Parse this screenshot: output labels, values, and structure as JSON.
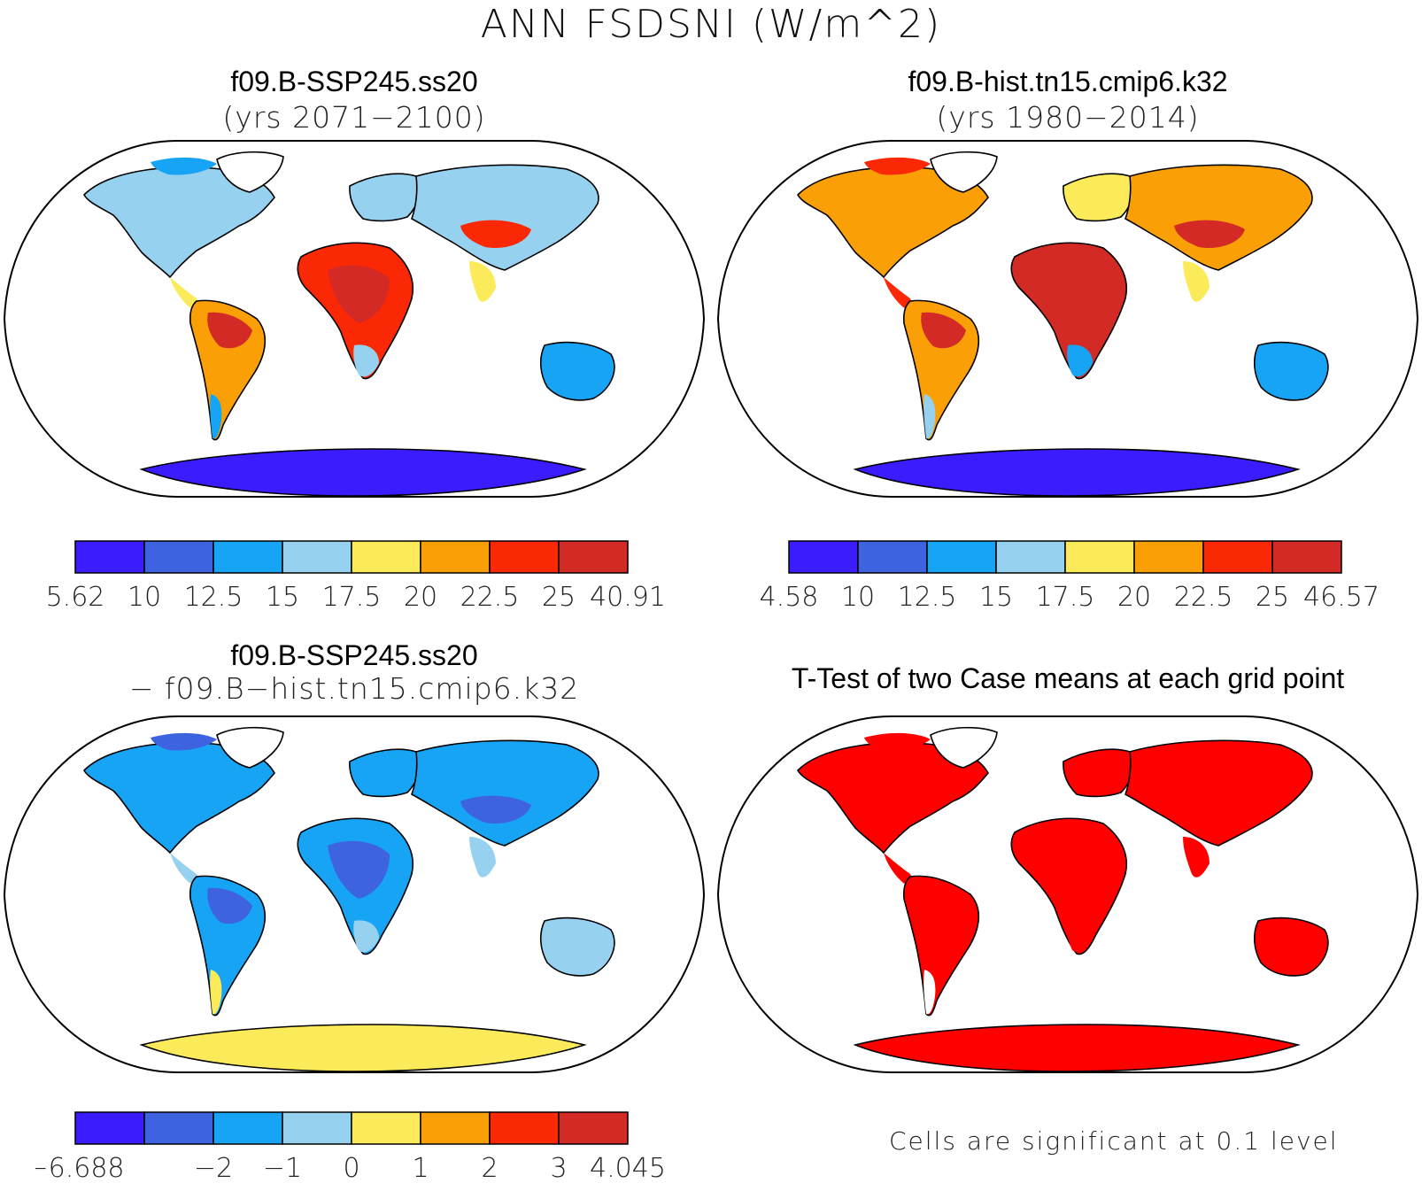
{
  "figure": {
    "title": "ANN FSDSNI (W/m^2)",
    "note": "Cells are significant at 0.1 level"
  },
  "panels": [
    {
      "id": "case1",
      "title": "f09.B-SSP245.ss20",
      "subtitle": "(yrs 2071−2100)",
      "colorbar": {
        "colors": [
          "#3a1cff",
          "#3e63e0",
          "#18a4f4",
          "#96d2f0",
          "#fbeb5a",
          "#fb9f07",
          "#fb2806",
          "#d32a26"
        ],
        "labels": [
          "5.62",
          "10",
          "12.5",
          "15",
          "17.5",
          "20",
          "22.5",
          "25",
          "40.91"
        ]
      }
    },
    {
      "id": "case2",
      "title": "f09.B-hist.tn15.cmip6.k32",
      "subtitle": "(yrs 1980−2014)",
      "colorbar": {
        "colors": [
          "#3a1cff",
          "#3e63e0",
          "#18a4f4",
          "#96d2f0",
          "#fbeb5a",
          "#fb9f07",
          "#fb2806",
          "#d32a26"
        ],
        "labels": [
          "4.58",
          "10",
          "12.5",
          "15",
          "17.5",
          "20",
          "22.5",
          "25",
          "46.57"
        ]
      }
    },
    {
      "id": "diff",
      "title": "f09.B-SSP245.ss20",
      "subtitle": "− f09.B−hist.tn15.cmip6.k32",
      "colorbar": {
        "colors": [
          "#3a1cff",
          "#3e63e0",
          "#18a4f4",
          "#96d2f0",
          "#fbeb5a",
          "#fb9f07",
          "#fb2806",
          "#d32a26"
        ],
        "labels": [
          "−6.688",
          "",
          "−2",
          "−1",
          "0",
          "1",
          "2",
          "3",
          "4.045"
        ]
      }
    },
    {
      "id": "ttest",
      "title": "T-Test of two Case means at each grid point",
      "subtitle": ""
    }
  ],
  "palettes": {
    "case1": {
      "ocean": "#ffffff",
      "northam": "#96d2f0",
      "greenland": "#ffffff",
      "arctic": "#18a4f4",
      "southam": "#fb9f07",
      "southam_core": "#d32a26",
      "southam_tip": "#18a4f4",
      "africa": "#fb2806",
      "africa_core": "#d32a26",
      "africa_south": "#96d2f0",
      "europe": "#96d2f0",
      "asia": "#96d2f0",
      "asia_south": "#fbeb5a",
      "asia_core": "#fb2806",
      "australia": "#18a4f4",
      "antarctica": "#3a1cff",
      "centralam": "#fbeb5a"
    },
    "case2": {
      "ocean": "#ffffff",
      "northam": "#fb9f07",
      "greenland": "#ffffff",
      "arctic": "#fb2806",
      "southam": "#fb9f07",
      "southam_core": "#d32a26",
      "southam_tip": "#96d2f0",
      "africa": "#d32a26",
      "africa_core": "#d32a26",
      "africa_south": "#18a4f4",
      "europe": "#fbeb5a",
      "asia": "#fb9f07",
      "asia_south": "#fbeb5a",
      "asia_core": "#d32a26",
      "australia": "#18a4f4",
      "antarctica": "#3a1cff",
      "centralam": "#fb2806"
    },
    "diff": {
      "ocean": "#ffffff",
      "northam": "#18a4f4",
      "greenland": "#ffffff",
      "arctic": "#3e63e0",
      "southam": "#18a4f4",
      "southam_core": "#3e63e0",
      "southam_tip": "#fbeb5a",
      "africa": "#18a4f4",
      "africa_core": "#3e63e0",
      "africa_south": "#96d2f0",
      "europe": "#18a4f4",
      "asia": "#18a4f4",
      "asia_south": "#96d2f0",
      "asia_core": "#3e63e0",
      "australia": "#96d2f0",
      "antarctica": "#fbeb5a",
      "centralam": "#96d2f0"
    },
    "ttest": {
      "ocean": "#ffffff",
      "northam": "#ff0000",
      "greenland": "#ffffff",
      "arctic": "#ff0000",
      "southam": "#ff0000",
      "southam_core": "#ff0000",
      "southam_tip": "#ffffff",
      "africa": "#ff0000",
      "africa_core": "#ff0000",
      "africa_south": "#ff0000",
      "europe": "#ff0000",
      "asia": "#ff0000",
      "asia_south": "#ff0000",
      "asia_core": "#ff0000",
      "australia": "#ff0000",
      "antarctica": "#ff0000",
      "centralam": "#ff0000"
    }
  }
}
